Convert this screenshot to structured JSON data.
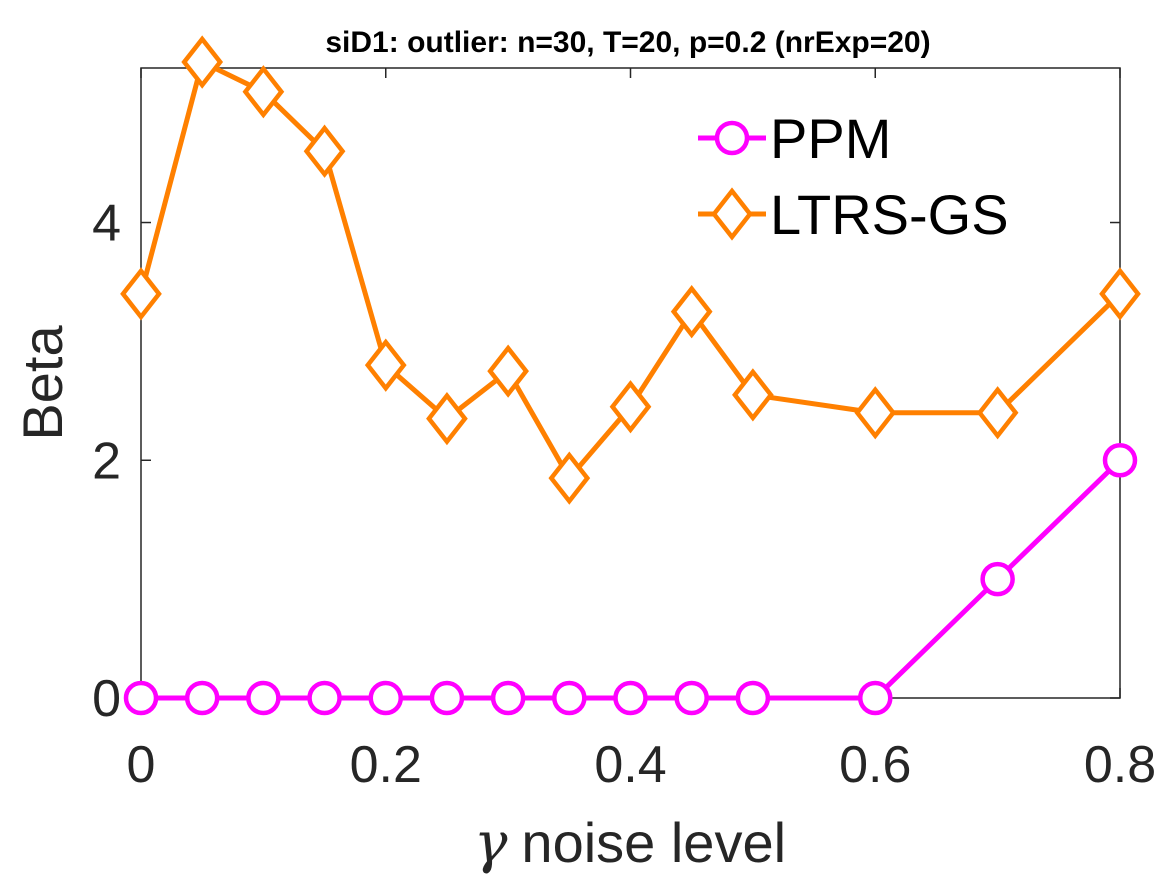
{
  "chart_data": {
    "type": "line",
    "title": "siD1: outlier: n=30, T=20, p=0.2 (nrExp=20)",
    "xlabel_symbol": "γ",
    "xlabel": "noise level",
    "ylabel": "Beta",
    "xlim": [
      0,
      0.8
    ],
    "ylim": [
      0,
      5.3
    ],
    "xticks": [
      "0",
      "0.2",
      "0.4",
      "0.6",
      "0.8"
    ],
    "xtick_values": [
      0,
      0.2,
      0.4,
      0.6,
      0.8
    ],
    "yticks": [
      "0",
      "2",
      "4"
    ],
    "ytick_values": [
      0,
      2,
      4
    ],
    "grid": false,
    "legend_position": "top-right",
    "series": [
      {
        "name": "PPM",
        "color": "#ff00ff",
        "marker": "circle",
        "x": [
          0,
          0.05,
          0.1,
          0.15,
          0.2,
          0.25,
          0.3,
          0.35,
          0.4,
          0.45,
          0.5,
          0.6,
          0.7,
          0.8
        ],
        "y": [
          0,
          0,
          0,
          0,
          0,
          0,
          0,
          0,
          0,
          0,
          0,
          0,
          1.0,
          2.0
        ]
      },
      {
        "name": "LTRS-GS",
        "color": "#ff8000",
        "marker": "diamond",
        "x": [
          0,
          0.05,
          0.1,
          0.15,
          0.2,
          0.25,
          0.3,
          0.35,
          0.4,
          0.45,
          0.5,
          0.6,
          0.7,
          0.8
        ],
        "y": [
          3.4,
          5.35,
          5.1,
          4.6,
          2.8,
          2.35,
          2.75,
          1.85,
          2.45,
          3.25,
          2.55,
          2.4,
          2.4,
          3.4
        ]
      }
    ]
  }
}
